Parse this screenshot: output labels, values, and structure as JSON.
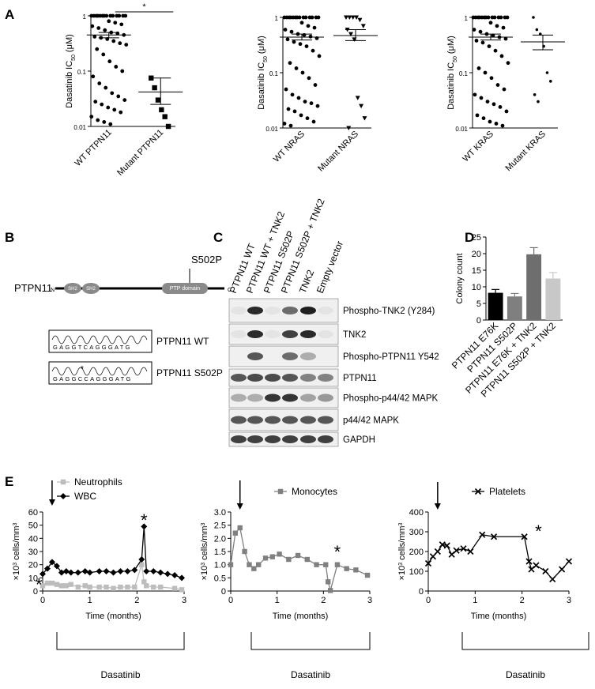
{
  "panel_labels": [
    "A",
    "B",
    "C",
    "D",
    "E"
  ],
  "panel_b": {
    "gene": "PTPN11",
    "n_term": "N",
    "c_term": "C",
    "domains": [
      "SH2",
      "SH2",
      "PTP domain"
    ],
    "mutation": "S502P",
    "traces": [
      {
        "sequence": "GAGGTCAGGGATG",
        "label": "PTPN11 WT"
      },
      {
        "sequence": "GAGGCCAGGGATG",
        "label": "PTPN11 S502P",
        "mark": "*"
      }
    ]
  },
  "panel_c": {
    "lanes": [
      "PTPN11 WT",
      "PTPN11 WT + TNK2",
      "PTPN11 S502P",
      "PTPN11 S502P + TNK2",
      "TNK2",
      "Empty vector"
    ],
    "blots": [
      "Phospho-TNK2 (Y284)",
      "TNK2",
      "Phospho-PTPN11 Y542",
      "PTPN11",
      "Phospho-p44/42 MAPK",
      "p44/42 MAPK",
      "GAPDH"
    ]
  },
  "chart_data": [
    {
      "type": "dotplot",
      "log": true,
      "ylim": [
        0.01,
        1
      ],
      "yticks": [
        0.01,
        0.1,
        1
      ],
      "ylabel": [
        {
          "text": "Dasatinib IC"
        },
        {
          "text": "50",
          "shift": "sub"
        },
        {
          "text": "(μM)"
        }
      ],
      "categories": [
        "WT PTPN11",
        "Mutant PTPN11"
      ],
      "groups": [
        {
          "marker": "circle",
          "color": "#000000",
          "mean": 0.45,
          "sem": [
            0.4,
            0.5
          ],
          "values": [
            1,
            1,
            1,
            1,
            1,
            1,
            1,
            1,
            1,
            1,
            1,
            1,
            1,
            1,
            0.8,
            0.75,
            0.7,
            0.65,
            0.6,
            0.55,
            0.5,
            0.48,
            0.45,
            0.42,
            0.4,
            0.38,
            0.35,
            0.32,
            0.3,
            0.25,
            0.2,
            0.15,
            0.12,
            0.1,
            0.08,
            0.06,
            0.05,
            0.04,
            0.035,
            0.03,
            0.028,
            0.025,
            0.022,
            0.02,
            0.018,
            0.015,
            0.013,
            0.012,
            0.011
          ]
        },
        {
          "marker": "square",
          "color": "#000000",
          "mean": 0.042,
          "sem": [
            0.025,
            0.075
          ],
          "values": [
            0.075,
            0.05,
            0.03,
            0.02,
            0.015,
            0.01
          ]
        }
      ],
      "significance": "*"
    },
    {
      "type": "dotplot",
      "log": true,
      "ylim": [
        0.01,
        1
      ],
      "yticks": [
        0.01,
        0.1,
        1
      ],
      "ylabel": [
        {
          "text": "Dasatinib IC"
        },
        {
          "text": "50",
          "shift": "sub"
        },
        {
          "text": "(μM)"
        }
      ],
      "categories": [
        "WT NRAS",
        "Mutant NRAS"
      ],
      "groups": [
        {
          "marker": "circle",
          "color": "#000000",
          "mean": 0.44,
          "sem": [
            0.39,
            0.5
          ],
          "values": [
            1,
            1,
            1,
            1,
            1,
            1,
            1,
            1,
            1,
            1,
            1,
            1,
            1,
            1,
            0.8,
            0.7,
            0.65,
            0.6,
            0.55,
            0.5,
            0.48,
            0.45,
            0.42,
            0.4,
            0.36,
            0.33,
            0.3,
            0.25,
            0.2,
            0.15,
            0.12,
            0.1,
            0.08,
            0.06,
            0.05,
            0.04,
            0.035,
            0.03,
            0.028,
            0.025,
            0.022,
            0.02,
            0.017,
            0.015,
            0.013,
            0.012,
            0.011
          ]
        },
        {
          "marker": "triangle",
          "color": "#000000",
          "mean": 0.47,
          "sem": [
            0.38,
            0.6
          ],
          "values": [
            1,
            1,
            1,
            1,
            0.9,
            0.7,
            0.6,
            0.5,
            0.4,
            0.035,
            0.025,
            0.015,
            0.01
          ]
        }
      ]
    },
    {
      "type": "dotplot",
      "log": true,
      "ylim": [
        0.01,
        1
      ],
      "yticks": [
        0.01,
        0.1,
        1
      ],
      "ylabel": [
        {
          "text": "Dasatinib IC"
        },
        {
          "text": "50",
          "shift": "sub"
        },
        {
          "text": "(μM)"
        }
      ],
      "categories": [
        "WT KRAS",
        "Mutant KRAS"
      ],
      "groups": [
        {
          "marker": "circle",
          "color": "#000000",
          "mean": 0.44,
          "sem": [
            0.39,
            0.5
          ],
          "values": [
            1,
            1,
            1,
            1,
            1,
            1,
            1,
            1,
            1,
            1,
            1,
            1,
            1,
            1,
            0.8,
            0.7,
            0.65,
            0.6,
            0.55,
            0.5,
            0.47,
            0.44,
            0.41,
            0.38,
            0.35,
            0.3,
            0.25,
            0.2,
            0.15,
            0.12,
            0.1,
            0.08,
            0.06,
            0.05,
            0.04,
            0.035,
            0.03,
            0.027,
            0.024,
            0.02,
            0.017,
            0.015,
            0.013,
            0.012,
            0.011
          ]
        },
        {
          "marker": "dot",
          "color": "#000000",
          "mean": 0.36,
          "sem": [
            0.26,
            0.48
          ],
          "values": [
            1,
            0.6,
            0.5,
            0.3,
            0.1,
            0.07,
            0.04,
            0.03
          ]
        }
      ]
    },
    {
      "type": "bar",
      "ylim": [
        0,
        25
      ],
      "yticks": [
        0,
        5,
        10,
        15,
        20,
        25
      ],
      "ylabel": [
        {
          "text": "Colony count"
        }
      ],
      "categories": [
        "PTPN11 E76K",
        "PTPN11 S502P",
        "PTPN11 E76K + TNK2",
        "PTPN11 S502P + TNK2"
      ],
      "values": [
        8.2,
        7.1,
        19.8,
        12.5
      ],
      "errors": [
        1,
        0.9,
        2,
        1.8
      ],
      "colors": [
        "#000000",
        "#7f7f7f",
        "#6e6e6e",
        "#c8c8c8"
      ]
    },
    {
      "type": "line",
      "xlim": [
        0,
        3
      ],
      "xticks": [
        0,
        1,
        2,
        3
      ],
      "ylim": [
        0,
        60
      ],
      "yticks": [
        0,
        10,
        20,
        30,
        40,
        50,
        60
      ],
      "xlabel": "Time (months)",
      "legend": "top-left",
      "ylabel": [
        {
          "text": "×10"
        },
        {
          "text": "3",
          "shift": "sup"
        },
        {
          "text": "cells/mm"
        },
        {
          "text": "3",
          "shift": "sup"
        }
      ],
      "series": [
        {
          "name": "Neutrophils",
          "color": "#bdbdbd",
          "marker": "square",
          "x": [
            0,
            0.1,
            0.2,
            0.3,
            0.4,
            0.5,
            0.6,
            0.75,
            0.9,
            1.0,
            1.2,
            1.35,
            1.5,
            1.65,
            1.8,
            1.95,
            2.1,
            2.15,
            2.2,
            2.35,
            2.5,
            2.8,
            2.95
          ],
          "values": [
            4,
            6,
            6,
            5,
            4,
            4,
            5,
            3,
            4,
            3,
            3,
            3,
            2,
            3,
            3,
            3,
            20,
            7,
            4,
            3,
            3,
            2,
            1
          ]
        },
        {
          "name": "WBC",
          "color": "#000000",
          "marker": "diamond",
          "x": [
            0,
            0.1,
            0.2,
            0.3,
            0.4,
            0.5,
            0.6,
            0.75,
            0.9,
            1.0,
            1.2,
            1.35,
            1.5,
            1.65,
            1.8,
            1.95,
            2.1,
            2.15,
            2.2,
            2.35,
            2.5,
            2.65,
            2.8,
            2.95
          ],
          "values": [
            13,
            17,
            22,
            19,
            14,
            15,
            14,
            14,
            15,
            14,
            15,
            15,
            14,
            15,
            15,
            16,
            24,
            49,
            15,
            15,
            14,
            13,
            12,
            10
          ]
        }
      ],
      "annotations": [
        "*",
        "*"
      ],
      "treatment": "Dasatinib"
    },
    {
      "type": "line",
      "xlim": [
        0,
        3
      ],
      "xticks": [
        0,
        1,
        2,
        3
      ],
      "ylim": [
        0,
        3
      ],
      "yticks": [
        0,
        0.5,
        {
          "value": 1,
          "label": "1.0"
        },
        1.5,
        {
          "value": 2,
          "label": "2.0"
        },
        2.5,
        {
          "value": 3,
          "label": "3.0"
        }
      ],
      "xlabel": "Time (months)",
      "legend": "top-left",
      "ylabel": [
        {
          "text": "×10"
        },
        {
          "text": "3",
          "shift": "sup"
        },
        {
          "text": "cells/mm"
        },
        {
          "text": "3",
          "shift": "sup"
        }
      ],
      "series": [
        {
          "name": "Monocytes",
          "color": "#808080",
          "marker": "square",
          "x": [
            0,
            0.1,
            0.2,
            0.3,
            0.4,
            0.5,
            0.6,
            0.75,
            0.9,
            1.05,
            1.25,
            1.45,
            1.65,
            1.85,
            2.05,
            2.1,
            2.15,
            2.3,
            2.5,
            2.7,
            2.95
          ],
          "values": [
            1.0,
            2.2,
            2.4,
            1.5,
            1.0,
            0.85,
            1.0,
            1.25,
            1.3,
            1.4,
            1.2,
            1.35,
            1.2,
            1.0,
            1.0,
            0.35,
            0.02,
            1.0,
            0.85,
            0.8,
            0.6
          ]
        }
      ],
      "annotations": [
        "*"
      ],
      "treatment": "Dasatinib"
    },
    {
      "type": "line",
      "xlim": [
        0,
        3
      ],
      "xticks": [
        0,
        1,
        2,
        3
      ],
      "ylim": [
        0,
        400
      ],
      "yticks": [
        0,
        100,
        200,
        300,
        400
      ],
      "xlabel": "Time (months)",
      "legend": "top-left",
      "ylabel": [
        {
          "text": "×10"
        },
        {
          "text": "3",
          "shift": "sup"
        },
        {
          "text": "cells/mm"
        },
        {
          "text": "3",
          "shift": "sup"
        }
      ],
      "series": [
        {
          "name": "Platelets",
          "color": "#000000",
          "marker": "cross",
          "x": [
            0,
            0.1,
            0.2,
            0.3,
            0.4,
            0.5,
            0.6,
            0.75,
            0.9,
            1.15,
            1.4,
            2.05,
            2.15,
            2.2,
            2.3,
            2.5,
            2.65,
            2.85,
            3.0
          ],
          "values": [
            140,
            175,
            200,
            235,
            230,
            185,
            205,
            215,
            200,
            285,
            275,
            275,
            150,
            110,
            130,
            100,
            60,
            110,
            150
          ]
        }
      ],
      "annotations": [
        "*"
      ],
      "treatment": "Dasatinib"
    }
  ]
}
